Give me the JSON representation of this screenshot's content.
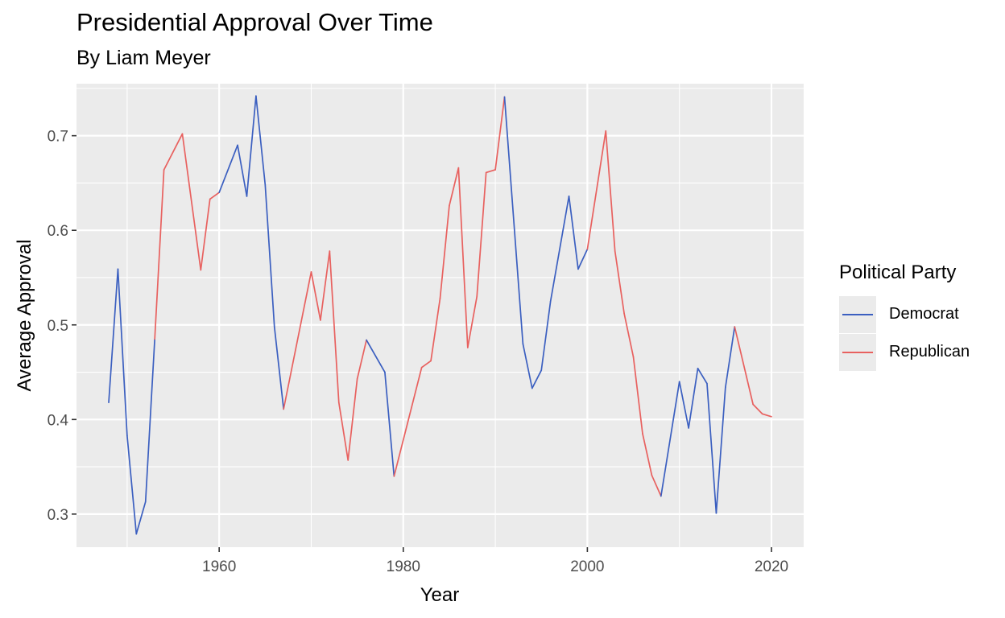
{
  "chart_data": {
    "type": "line",
    "title": "Presidential Approval Over Time",
    "subtitle": "By Liam Meyer",
    "xlabel": "Year",
    "ylabel": "Average Approval",
    "xlim": [
      1944.5,
      2023.5
    ],
    "ylim": [
      0.265,
      0.755
    ],
    "xticks": [
      1960,
      1980,
      2000,
      2020
    ],
    "yticks": [
      0.3,
      0.4,
      0.5,
      0.6,
      0.7
    ],
    "ytick_labels": [
      "0.3",
      "0.4",
      "0.5",
      "0.6",
      "0.7"
    ],
    "grid": true,
    "background": "#ebebeb",
    "legend": {
      "title": "Political Party",
      "position": "right",
      "entries": [
        {
          "label": "Democrat",
          "color": "#3b5fc0"
        },
        {
          "label": "Republican",
          "color": "#e8615f"
        }
      ]
    },
    "points": [
      {
        "x": 1948,
        "y": 0.418,
        "party": "Democrat"
      },
      {
        "x": 1949,
        "y": 0.559,
        "party": "Democrat"
      },
      {
        "x": 1950,
        "y": 0.383,
        "party": "Democrat"
      },
      {
        "x": 1951,
        "y": 0.279,
        "party": "Democrat"
      },
      {
        "x": 1952,
        "y": 0.313,
        "party": "Democrat"
      },
      {
        "x": 1953,
        "y": 0.485,
        "party": "Democrat"
      },
      {
        "x": 1954,
        "y": 0.664,
        "party": "Republican"
      },
      {
        "x": 1956,
        "y": 0.702,
        "party": "Republican"
      },
      {
        "x": 1958,
        "y": 0.558,
        "party": "Republican"
      },
      {
        "x": 1959,
        "y": 0.633,
        "party": "Republican"
      },
      {
        "x": 1960,
        "y": 0.64,
        "party": "Republican"
      },
      {
        "x": 1962,
        "y": 0.69,
        "party": "Democrat"
      },
      {
        "x": 1963,
        "y": 0.636,
        "party": "Democrat"
      },
      {
        "x": 1964,
        "y": 0.742,
        "party": "Democrat"
      },
      {
        "x": 1965,
        "y": 0.648,
        "party": "Democrat"
      },
      {
        "x": 1966,
        "y": 0.498,
        "party": "Democrat"
      },
      {
        "x": 1967,
        "y": 0.411,
        "party": "Democrat"
      },
      {
        "x": 1970,
        "y": 0.556,
        "party": "Republican"
      },
      {
        "x": 1971,
        "y": 0.505,
        "party": "Republican"
      },
      {
        "x": 1972,
        "y": 0.578,
        "party": "Republican"
      },
      {
        "x": 1973,
        "y": 0.418,
        "party": "Republican"
      },
      {
        "x": 1974,
        "y": 0.357,
        "party": "Republican"
      },
      {
        "x": 1975,
        "y": 0.443,
        "party": "Republican"
      },
      {
        "x": 1976,
        "y": 0.484,
        "party": "Republican"
      },
      {
        "x": 1978,
        "y": 0.45,
        "party": "Democrat"
      },
      {
        "x": 1979,
        "y": 0.34,
        "party": "Democrat"
      },
      {
        "x": 1982,
        "y": 0.455,
        "party": "Republican"
      },
      {
        "x": 1983,
        "y": 0.462,
        "party": "Republican"
      },
      {
        "x": 1984,
        "y": 0.528,
        "party": "Republican"
      },
      {
        "x": 1985,
        "y": 0.626,
        "party": "Republican"
      },
      {
        "x": 1986,
        "y": 0.666,
        "party": "Republican"
      },
      {
        "x": 1987,
        "y": 0.476,
        "party": "Republican"
      },
      {
        "x": 1988,
        "y": 0.53,
        "party": "Republican"
      },
      {
        "x": 1989,
        "y": 0.661,
        "party": "Republican"
      },
      {
        "x": 1990,
        "y": 0.664,
        "party": "Republican"
      },
      {
        "x": 1991,
        "y": 0.741,
        "party": "Republican"
      },
      {
        "x": 1993,
        "y": 0.48,
        "party": "Democrat"
      },
      {
        "x": 1994,
        "y": 0.433,
        "party": "Democrat"
      },
      {
        "x": 1995,
        "y": 0.452,
        "party": "Democrat"
      },
      {
        "x": 1996,
        "y": 0.525,
        "party": "Democrat"
      },
      {
        "x": 1998,
        "y": 0.636,
        "party": "Democrat"
      },
      {
        "x": 1999,
        "y": 0.559,
        "party": "Democrat"
      },
      {
        "x": 2000,
        "y": 0.58,
        "party": "Democrat"
      },
      {
        "x": 2002,
        "y": 0.705,
        "party": "Republican"
      },
      {
        "x": 2003,
        "y": 0.578,
        "party": "Republican"
      },
      {
        "x": 2004,
        "y": 0.512,
        "party": "Republican"
      },
      {
        "x": 2005,
        "y": 0.466,
        "party": "Republican"
      },
      {
        "x": 2006,
        "y": 0.385,
        "party": "Republican"
      },
      {
        "x": 2007,
        "y": 0.341,
        "party": "Republican"
      },
      {
        "x": 2008,
        "y": 0.319,
        "party": "Republican"
      },
      {
        "x": 2010,
        "y": 0.44,
        "party": "Democrat"
      },
      {
        "x": 2011,
        "y": 0.391,
        "party": "Democrat"
      },
      {
        "x": 2012,
        "y": 0.454,
        "party": "Democrat"
      },
      {
        "x": 2013,
        "y": 0.438,
        "party": "Democrat"
      },
      {
        "x": 2014,
        "y": 0.301,
        "party": "Democrat"
      },
      {
        "x": 2015,
        "y": 0.434,
        "party": "Democrat"
      },
      {
        "x": 2016,
        "y": 0.498,
        "party": "Democrat"
      },
      {
        "x": 2018,
        "y": 0.416,
        "party": "Republican"
      },
      {
        "x": 2019,
        "y": 0.406,
        "party": "Republican"
      },
      {
        "x": 2020,
        "y": 0.403,
        "party": "Republican"
      }
    ]
  }
}
